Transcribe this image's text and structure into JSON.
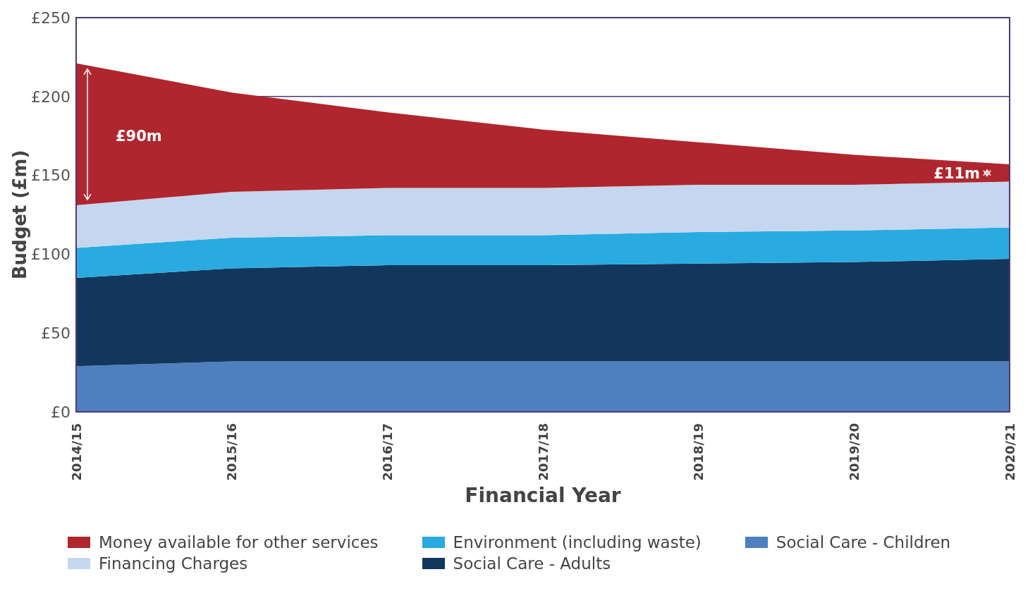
{
  "chart_data": {
    "type": "area",
    "stacked": true,
    "xlabel": "Financial Year",
    "ylabel": "Budget (£m)",
    "categories": [
      "2014/15",
      "2015/16",
      "2016/17",
      "2017/18",
      "2018/19",
      "2019/20",
      "2020/21"
    ],
    "series": [
      {
        "name": "Social Care - Children",
        "color": "#4e7fbf",
        "values": [
          29,
          32,
          32,
          32,
          32,
          32,
          32
        ]
      },
      {
        "name": "Social Care - Adults",
        "color": "#13375c",
        "values": [
          56,
          59,
          61,
          61,
          62,
          63,
          65
        ]
      },
      {
        "name": "Environment (including waste)",
        "color": "#29abe2",
        "values": [
          19,
          19.5,
          19,
          19,
          20,
          20,
          20
        ]
      },
      {
        "name": "Financing Charges",
        "color": "#c5d7ef",
        "values": [
          27,
          29,
          30,
          30,
          30,
          29,
          29
        ]
      },
      {
        "name": "Money available for other services",
        "color": "#b0262e",
        "values": [
          90,
          63,
          48,
          37,
          27,
          19,
          11
        ]
      }
    ],
    "ylim": [
      0,
      250
    ],
    "yticks": [
      {
        "value": 0,
        "label": "£0"
      },
      {
        "value": 50,
        "label": "£50"
      },
      {
        "value": 100,
        "label": "£100"
      },
      {
        "value": 150,
        "label": "£150"
      },
      {
        "value": 200,
        "label": "£200"
      },
      {
        "value": 250,
        "label": "£250"
      }
    ],
    "legend": "bottom",
    "ref_lines": [
      {
        "axis": "y",
        "value": 200,
        "color": "#4b3a78"
      }
    ],
    "annotations": [
      {
        "text": "£90m",
        "x": "2014/15",
        "y": 175
      },
      {
        "text": "£11m",
        "x": "2020/21",
        "y": 151
      }
    ]
  }
}
